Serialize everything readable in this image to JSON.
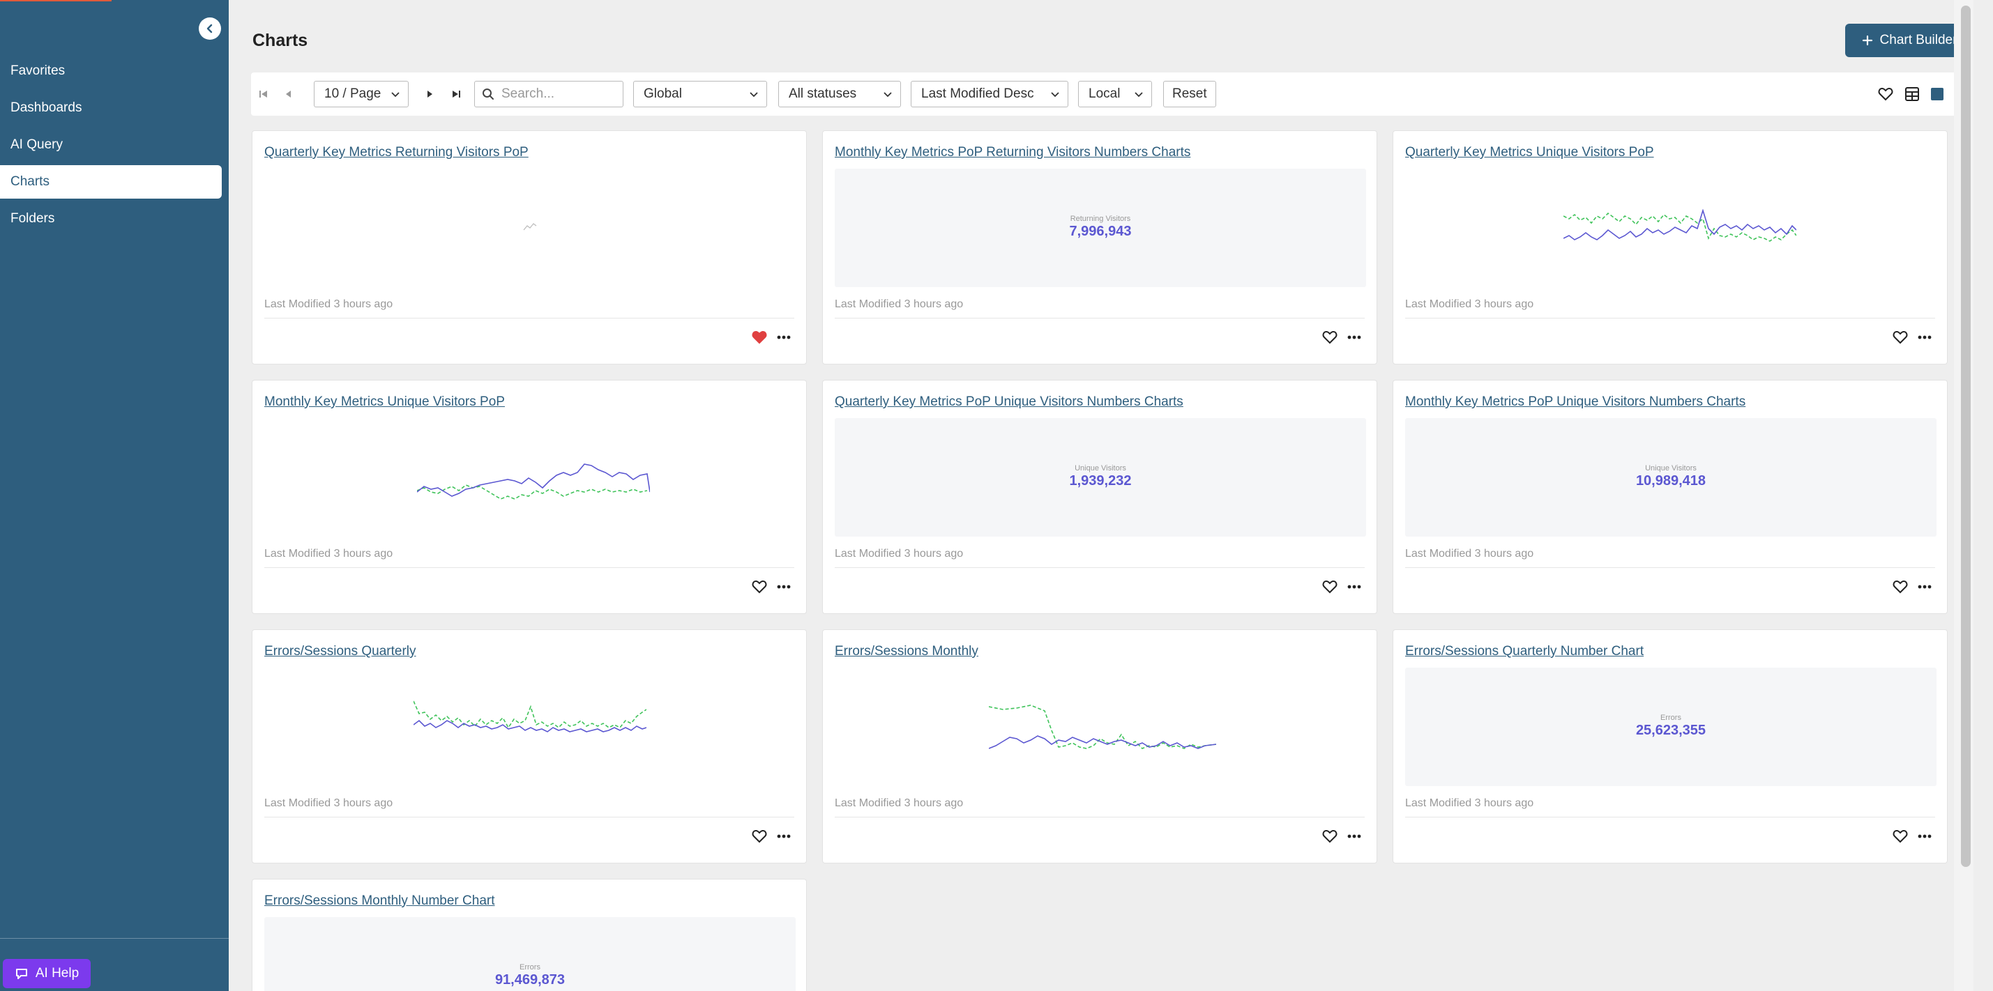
{
  "sidebar": {
    "items": [
      {
        "label": "Favorites",
        "active": false
      },
      {
        "label": "Dashboards",
        "active": false
      },
      {
        "label": "AI Query",
        "active": false
      },
      {
        "label": "Charts",
        "active": true
      },
      {
        "label": "Folders",
        "active": false
      }
    ],
    "ai_help_label": "AI Help"
  },
  "header": {
    "title": "Charts",
    "chart_builder_label": "Chart Builder"
  },
  "toolbar": {
    "page_size": "10 / Page",
    "search_placeholder": "Search...",
    "scope": "Global",
    "status": "All statuses",
    "sort": "Last Modified Desc",
    "timezone": "Local",
    "reset_label": "Reset"
  },
  "cards": [
    {
      "title": "Quarterly Key Metrics Returning Visitors PoP",
      "modified": "Last Modified 3 hours ago",
      "favorite": true
    },
    {
      "title": "Monthly Key Metrics PoP Returning Visitors Numbers Charts",
      "modified": "Last Modified 3 hours ago",
      "favorite": false,
      "number_label": "Returning Visitors",
      "number_value": "7,996,943"
    },
    {
      "title": "Quarterly Key Metrics Unique Visitors PoP",
      "modified": "Last Modified 3 hours ago",
      "favorite": false
    },
    {
      "title": "Monthly Key Metrics Unique Visitors PoP",
      "modified": "Last Modified 3 hours ago",
      "favorite": false
    },
    {
      "title": "Quarterly Key Metrics PoP Unique Visitors Numbers Charts",
      "modified": "Last Modified 3 hours ago",
      "favorite": false,
      "number_label": "Unique Visitors",
      "number_value": "1,939,232"
    },
    {
      "title": "Monthly Key Metrics PoP Unique Visitors Numbers Charts",
      "modified": "Last Modified 3 hours ago",
      "favorite": false,
      "number_label": "Unique Visitors",
      "number_value": "10,989,418"
    },
    {
      "title": "Errors/Sessions Quarterly",
      "modified": "Last Modified 3 hours ago",
      "favorite": false
    },
    {
      "title": "Errors/Sessions Monthly",
      "modified": "Last Modified 3 hours ago",
      "favorite": false
    },
    {
      "title": "Errors/Sessions Quarterly Number Chart",
      "modified": "Last Modified 3 hours ago",
      "favorite": false,
      "number_label": "Errors",
      "number_value": "25,623,355"
    },
    {
      "title": "Errors/Sessions Monthly Number Chart",
      "modified": "",
      "favorite": false,
      "number_label": "Errors",
      "number_value": "91,469,873"
    }
  ],
  "colors": {
    "sidebar": "#2e5e7e",
    "accent": "#2e5e7e",
    "series_primary": "#5b57d1",
    "series_compare": "#3fc35a",
    "favorite": "#e04040",
    "ai_help": "#7c3aed"
  },
  "icons": [
    "collapse-chevron-icon",
    "plus-icon",
    "first-page-icon",
    "prev-page-icon",
    "next-page-icon",
    "last-page-icon",
    "search-icon",
    "chevron-down-icon",
    "heart-icon",
    "table-view-icon",
    "grid-view-icon",
    "more-icon",
    "chat-icon"
  ]
}
